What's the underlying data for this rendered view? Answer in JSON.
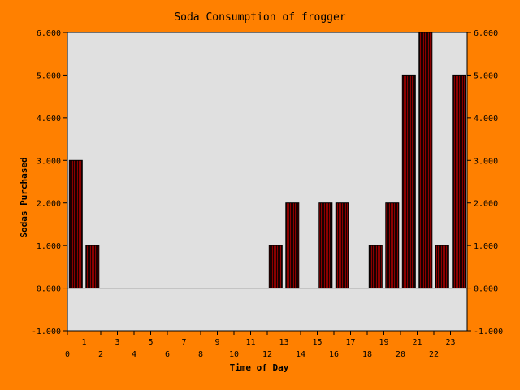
{
  "chart_data": {
    "type": "bar",
    "title": "Soda Consumption of frogger",
    "xlabel": "Time of Day",
    "ylabel": "Sodas Purchased",
    "ylim": [
      -1,
      6
    ],
    "y_ticks": [
      "-1.000",
      "0.000",
      "1.000",
      "2.000",
      "3.000",
      "4.000",
      "5.000",
      "6.000"
    ],
    "categories": [
      "0",
      "1",
      "2",
      "3",
      "4",
      "5",
      "6",
      "7",
      "8",
      "9",
      "10",
      "11",
      "12",
      "13",
      "14",
      "15",
      "16",
      "17",
      "18",
      "19",
      "20",
      "21",
      "22",
      "23"
    ],
    "values": [
      3,
      1,
      0,
      0,
      0,
      0,
      0,
      0,
      0,
      0,
      0,
      0,
      1,
      2,
      0,
      2,
      2,
      0,
      1,
      2,
      5,
      6,
      1,
      5
    ],
    "grid": false,
    "legend": "none",
    "right_axis": true,
    "colors": {
      "background": "#ff8000",
      "plot_area": "#e0e0e0",
      "bar_fill": "#8b0000",
      "bar_stripe": "#1a0000",
      "text": "#000000"
    }
  }
}
